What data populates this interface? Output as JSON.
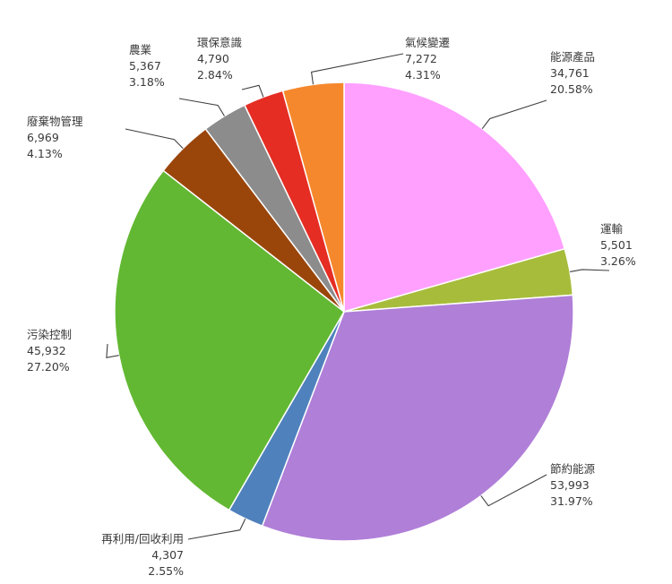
{
  "chart_data": {
    "type": "pie",
    "start_angle_deg": 0,
    "direction": "clockwise",
    "slices": [
      {
        "name": "能源產品",
        "value": "34,761",
        "percent": "20.58%",
        "color": "#FFA0FF"
      },
      {
        "name": "運輸",
        "value": "5,501",
        "percent": "3.26%",
        "color": "#A8BC3C"
      },
      {
        "name": "節約能源",
        "value": "53,993",
        "percent": "31.97%",
        "color": "#B07FD8"
      },
      {
        "name": "再利用/回收利用",
        "value": "4,307",
        "percent": "2.55%",
        "color": "#4F81BD"
      },
      {
        "name": "污染控制",
        "value": "45,932",
        "percent": "27.20%",
        "color": "#62B832"
      },
      {
        "name": "廢棄物管理",
        "value": "6,969",
        "percent": "4.13%",
        "color": "#9A460B"
      },
      {
        "name": "農業",
        "value": "5,367",
        "percent": "3.18%",
        "color": "#8C8C8C"
      },
      {
        "name": "環保意識",
        "value": "4,790",
        "percent": "2.84%",
        "color": "#E52D24"
      },
      {
        "name": "氣候變遷",
        "value": "7,272",
        "percent": "4.31%",
        "color": "#F5882D"
      }
    ]
  }
}
